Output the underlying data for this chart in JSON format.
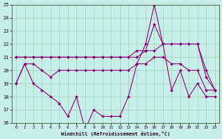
{
  "xlabel": "Windchill (Refroidissement éolien,°C)",
  "background_color": "#c8eee8",
  "grid_color": "#a0ccbb",
  "line_color": "#880077",
  "xlim": [
    0,
    23
  ],
  "ylim": [
    16,
    25
  ],
  "yticks": [
    16,
    17,
    18,
    19,
    20,
    21,
    22,
    23,
    24,
    25
  ],
  "xticks": [
    0,
    1,
    2,
    3,
    4,
    5,
    6,
    7,
    8,
    9,
    10,
    11,
    12,
    13,
    14,
    15,
    16,
    17,
    18,
    19,
    20,
    21,
    22,
    23
  ],
  "lines": [
    {
      "x": [
        0,
        1,
        2,
        3,
        4,
        5,
        6,
        7,
        8,
        9,
        10,
        11,
        12,
        13,
        14,
        15,
        16,
        17,
        18,
        19,
        20,
        21,
        22,
        23
      ],
      "y": [
        21.0,
        21.0,
        21.0,
        21.0,
        21.0,
        21.0,
        21.0,
        21.0,
        21.0,
        21.0,
        21.0,
        21.0,
        21.0,
        21.0,
        21.5,
        21.5,
        21.5,
        22.0,
        22.0,
        22.0,
        22.0,
        22.0,
        20.0,
        18.5
      ]
    },
    {
      "x": [
        0,
        1,
        2,
        3,
        4,
        5,
        6,
        7,
        8,
        9,
        10,
        11,
        12,
        13,
        14,
        15,
        16,
        17,
        18,
        19,
        20,
        21,
        22,
        23
      ],
      "y": [
        21.0,
        21.0,
        21.0,
        21.0,
        21.0,
        21.0,
        21.0,
        21.0,
        21.0,
        21.0,
        21.0,
        21.0,
        21.0,
        21.0,
        21.0,
        21.5,
        23.5,
        22.0,
        22.0,
        22.0,
        22.0,
        22.0,
        19.5,
        18.5
      ]
    },
    {
      "x": [
        0,
        1,
        2,
        3,
        4,
        5,
        6,
        7,
        8,
        9,
        10,
        11,
        12,
        13,
        14,
        15,
        16,
        17,
        18,
        19,
        20,
        21,
        22,
        23
      ],
      "y": [
        19.0,
        20.5,
        20.5,
        20.0,
        19.5,
        20.0,
        20.0,
        20.0,
        20.0,
        20.0,
        20.0,
        20.0,
        20.0,
        20.0,
        20.5,
        20.5,
        21.0,
        21.0,
        20.5,
        20.5,
        20.0,
        20.0,
        18.5,
        18.5
      ]
    },
    {
      "x": [
        0,
        1,
        2,
        3,
        4,
        5,
        6,
        7,
        8,
        9,
        10,
        11,
        12,
        13,
        14,
        15,
        16,
        17,
        18,
        19,
        20,
        21,
        22,
        23
      ],
      "y": [
        19.0,
        20.5,
        19.0,
        18.5,
        18.0,
        17.5,
        16.5,
        18.0,
        15.5,
        17.0,
        16.5,
        16.5,
        16.5,
        18.0,
        20.5,
        22.0,
        25.0,
        22.0,
        18.5,
        20.0,
        18.0,
        19.0,
        18.0,
        18.0
      ]
    }
  ]
}
